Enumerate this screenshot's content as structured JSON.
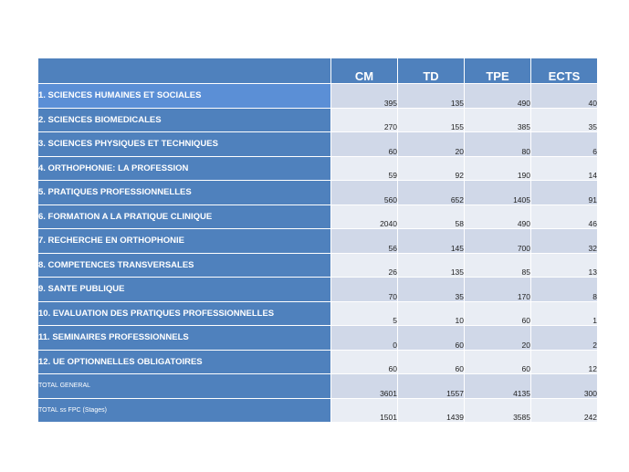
{
  "table": {
    "headers": [
      "CM",
      "TD",
      "TPE",
      "ECTS"
    ],
    "rows": [
      {
        "label": "1. SCIENCES HUMAINES ET SOCIALES",
        "cm": "395",
        "td": "135",
        "tpe": "490",
        "ects": "40"
      },
      {
        "label": "2. SCIENCES BIOMEDICALES",
        "cm": "270",
        "td": "155",
        "tpe": "385",
        "ects": "35"
      },
      {
        "label": "3. SCIENCES PHYSIQUES ET TECHNIQUES",
        "cm": "60",
        "td": "20",
        "tpe": "80",
        "ects": "6"
      },
      {
        "label": "4. ORTHOPHONIE: LA PROFESSION",
        "cm": "59",
        "td": "92",
        "tpe": "190",
        "ects": "14"
      },
      {
        "label": "5. PRATIQUES PROFESSIONNELLES",
        "cm": "560",
        "td": "652",
        "tpe": "1405",
        "ects": "91"
      },
      {
        "label": "6. FORMATION A LA PRATIQUE CLINIQUE",
        "cm": "2040",
        "td": "58",
        "tpe": "490",
        "ects": "46"
      },
      {
        "label": "7. RECHERCHE EN ORTHOPHONIE",
        "cm": "56",
        "td": "145",
        "tpe": "700",
        "ects": "32"
      },
      {
        "label": "8. COMPETENCES TRANSVERSALES",
        "cm": "26",
        "td": "135",
        "tpe": "85",
        "ects": "13"
      },
      {
        "label": "9. SANTE PUBLIQUE",
        "cm": "70",
        "td": "35",
        "tpe": "170",
        "ects": "8"
      },
      {
        "label": "10. EVALUATION DES PRATIQUES PROFESSIONNELLES",
        "cm": "5",
        "td": "10",
        "tpe": "60",
        "ects": "1"
      },
      {
        "label": "11. SEMINAIRES PROFESSIONNELS",
        "cm": "0",
        "td": "60",
        "tpe": "20",
        "ects": "2"
      },
      {
        "label": "12. UE OPTIONNELLES OBLIGATOIRES",
        "cm": "60",
        "td": "60",
        "tpe": "60",
        "ects": "12"
      },
      {
        "label": "TOTAL GENERAL",
        "cm": "3601",
        "td": "1557",
        "tpe": "4135",
        "ects": "300"
      },
      {
        "label": "TOTAL ss FPC (Stages)",
        "cm": "1501",
        "td": "1439",
        "tpe": "3585",
        "ects": "242"
      }
    ]
  },
  "colors": {
    "header_blue": "#4f81bd",
    "highlight_blue": "#5b8fd6",
    "row_band_dark": "#d0d8e8",
    "row_band_light": "#e9edf4"
  }
}
